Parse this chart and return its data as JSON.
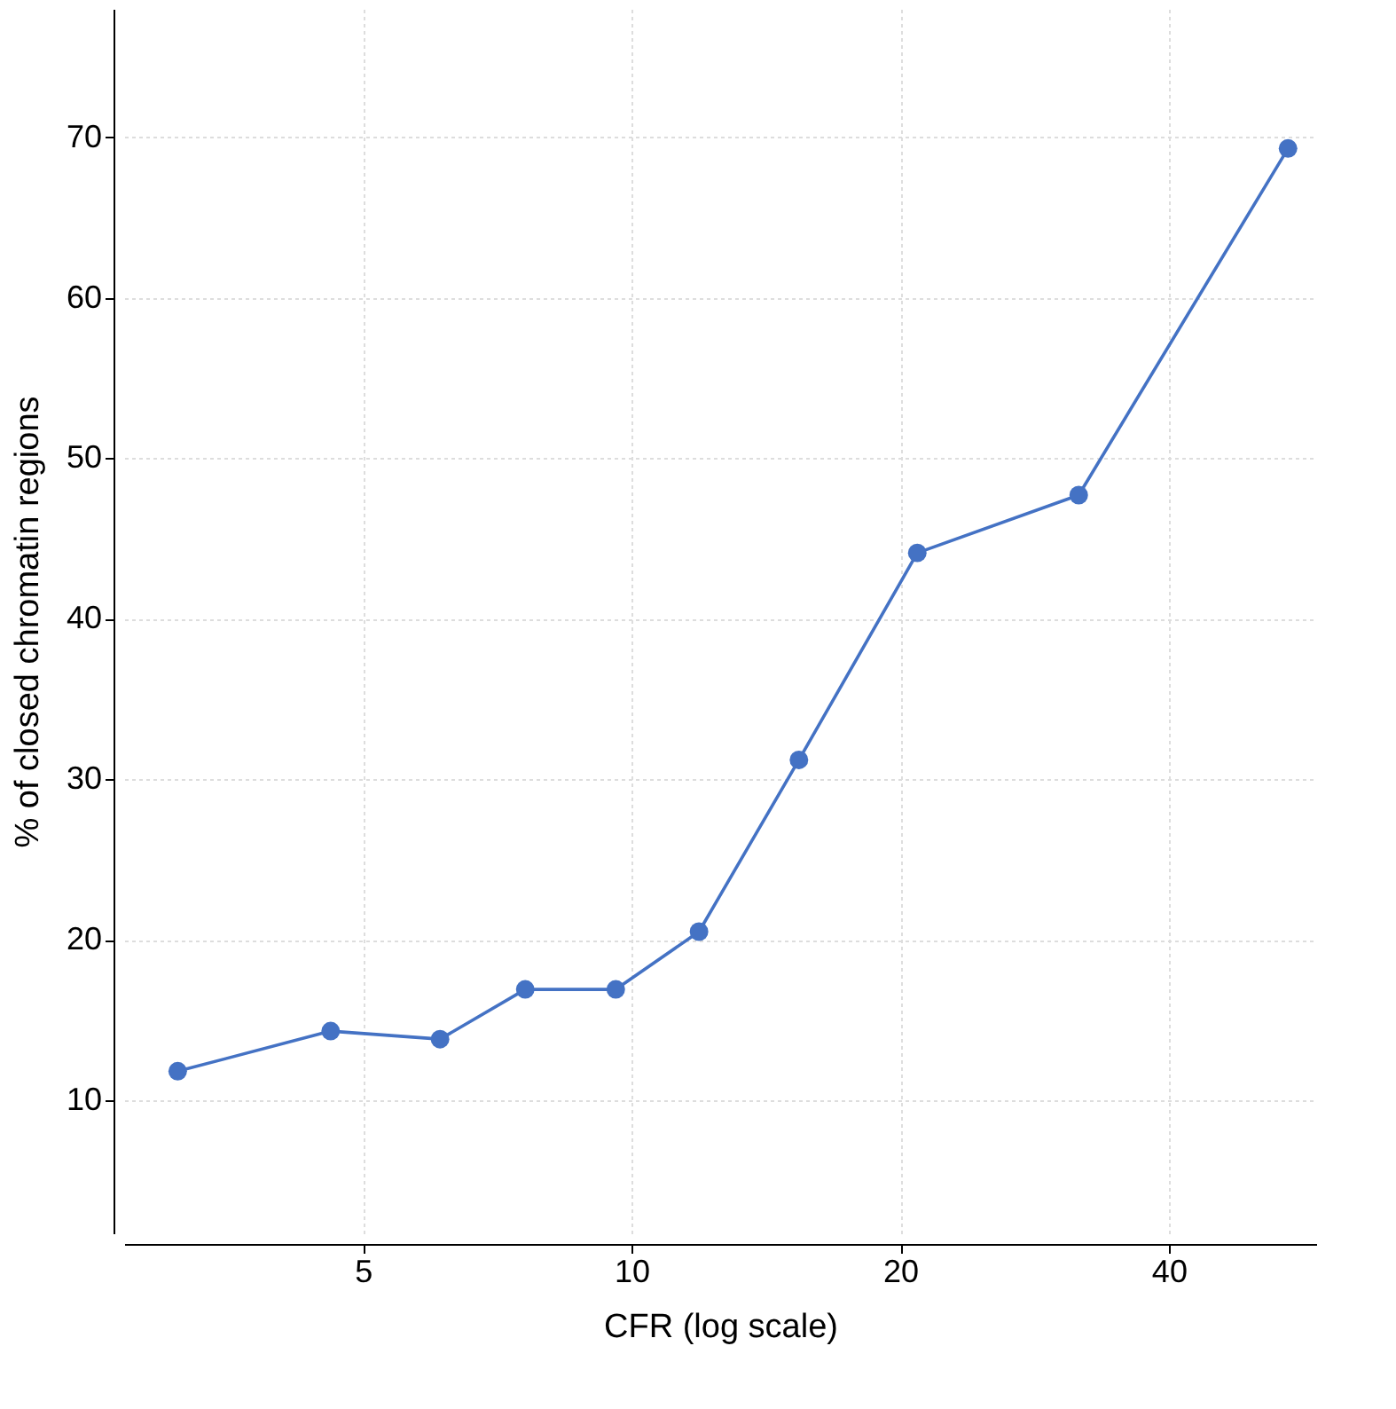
{
  "chart_data": {
    "type": "line",
    "xlabel": "CFR (log scale)",
    "ylabel": "% of closed chromatin regions",
    "x": [
      3.1,
      4.6,
      6.1,
      7.6,
      9.6,
      11.9,
      15.4,
      20.9,
      31.7,
      54.4
    ],
    "series": [
      {
        "color": "#4472c4",
        "values": [
          11.8,
          14.3,
          13.8,
          16.9,
          16.9,
          20.5,
          31.2,
          44.1,
          47.7,
          69.3
        ]
      }
    ],
    "log": "x",
    "xlim": [
      2.7,
      58.5
    ],
    "xticks": [
      5,
      10,
      20,
      40
    ],
    "ylim": [
      1.7,
      78
    ],
    "yticks": [
      10,
      20,
      30,
      40,
      50,
      60,
      70
    ],
    "grid": true,
    "marker": "circle",
    "line_style": "solid"
  }
}
